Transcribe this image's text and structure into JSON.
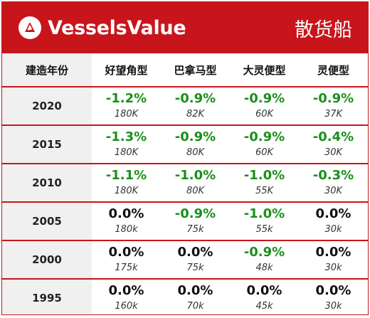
{
  "banner": {
    "brand": "VesselsValue",
    "section": "散货船",
    "colors": {
      "brand_red": "#c8151b",
      "negative": "#1a8f1a"
    }
  },
  "table": {
    "headers": [
      "建造年份",
      "好望角型",
      "巴拿马型",
      "大灵便型",
      "灵便型"
    ],
    "rows": [
      {
        "year": "2020",
        "cells": [
          {
            "change": "-1.2%",
            "size": "180K"
          },
          {
            "change": "-0.9%",
            "size": "82K"
          },
          {
            "change": "-0.9%",
            "size": "60K"
          },
          {
            "change": "-0.9%",
            "size": "37K"
          }
        ]
      },
      {
        "year": "2015",
        "cells": [
          {
            "change": "-1.3%",
            "size": "180K"
          },
          {
            "change": "-0.9%",
            "size": "80K"
          },
          {
            "change": "-0.9%",
            "size": "60K"
          },
          {
            "change": "-0.4%",
            "size": "30K"
          }
        ]
      },
      {
        "year": "2010",
        "cells": [
          {
            "change": "-1.1%",
            "size": "180K"
          },
          {
            "change": "-1.0%",
            "size": "80K"
          },
          {
            "change": "-1.0%",
            "size": "55K"
          },
          {
            "change": "-0.3%",
            "size": "30K"
          }
        ]
      },
      {
        "year": "2005",
        "cells": [
          {
            "change": "0.0%",
            "size": "180k"
          },
          {
            "change": "-0.9%",
            "size": "75k"
          },
          {
            "change": "-1.0%",
            "size": "55k"
          },
          {
            "change": "0.0%",
            "size": "30k"
          }
        ]
      },
      {
        "year": "2000",
        "cells": [
          {
            "change": "0.0%",
            "size": "175k"
          },
          {
            "change": "0.0%",
            "size": "75k"
          },
          {
            "change": "-0.9%",
            "size": "48k"
          },
          {
            "change": "0.0%",
            "size": "30k"
          }
        ]
      },
      {
        "year": "1995",
        "cells": [
          {
            "change": "0.0%",
            "size": "160k"
          },
          {
            "change": "0.0%",
            "size": "70k"
          },
          {
            "change": "0.0%",
            "size": "45k"
          },
          {
            "change": "0.0%",
            "size": "30k"
          }
        ]
      }
    ]
  }
}
